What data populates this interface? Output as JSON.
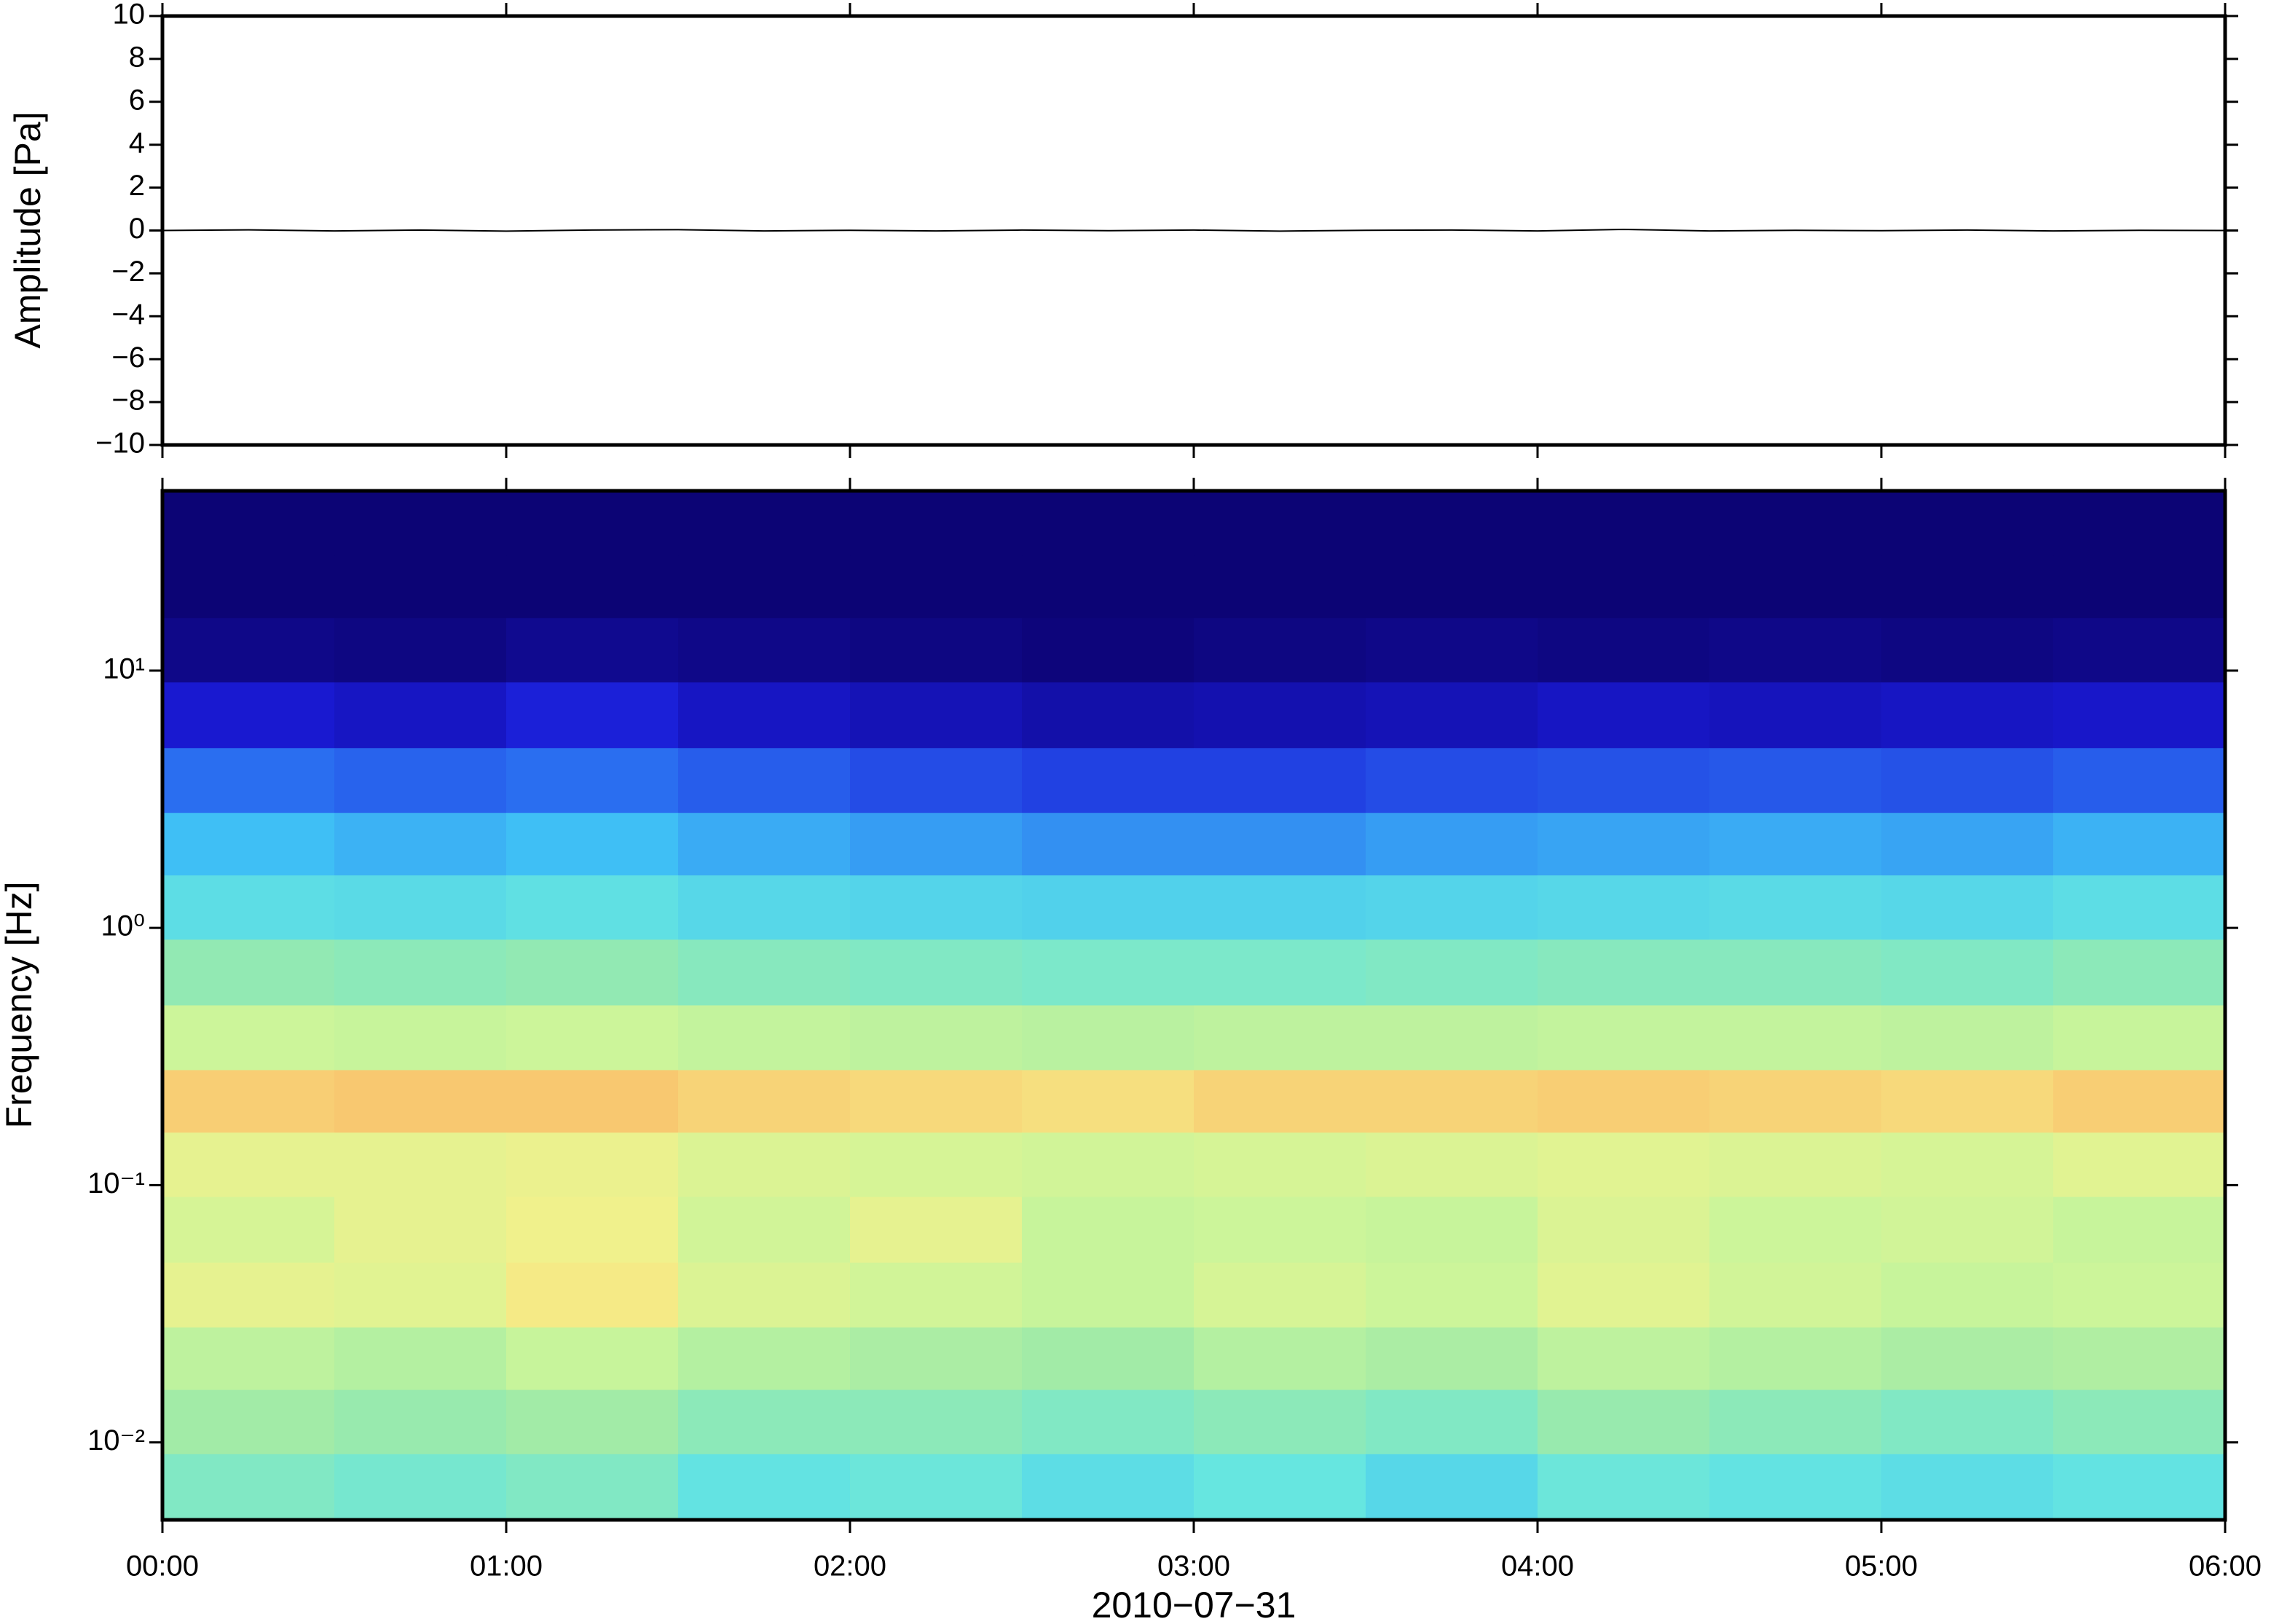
{
  "chart_data": [
    {
      "type": "line",
      "ylabel": "Amplitude [Pa]",
      "xlim": [
        0,
        6
      ],
      "xticks": [
        0,
        1,
        2,
        3,
        4,
        5,
        6
      ],
      "ylim": [
        -10,
        10
      ],
      "yticks": [
        {
          "value": -10,
          "label": "−10"
        },
        {
          "value": -8,
          "label": "−8"
        },
        {
          "value": -6,
          "label": "−6"
        },
        {
          "value": -4,
          "label": "−4"
        },
        {
          "value": -2,
          "label": "−2"
        },
        0,
        2,
        4,
        6,
        8,
        10
      ],
      "color": "#000000",
      "x": [
        0,
        0.25,
        0.5,
        0.75,
        1,
        1.25,
        1.5,
        1.75,
        2,
        2.25,
        2.5,
        2.75,
        3,
        3.25,
        3.5,
        3.75,
        4,
        4.25,
        4.5,
        4.75,
        5,
        5.25,
        5.5,
        5.75,
        6
      ],
      "values": [
        0,
        0.03,
        -0.02,
        0.02,
        -0.03,
        0.02,
        0.04,
        -0.02,
        0.01,
        -0.02,
        0.02,
        -0.01,
        0.02,
        -0.03,
        0.01,
        0.02,
        -0.02,
        0.05,
        -0.02,
        0.01,
        -0.01,
        0.02,
        -0.02,
        0.01,
        0
      ]
    },
    {
      "type": "heatmap",
      "ylabel": "Frequency [Hz]",
      "xlabel": "2010−07−31",
      "xlim": [
        0,
        6
      ],
      "xticks": [
        {
          "value": 0,
          "label": "00:00"
        },
        {
          "value": 1,
          "label": "01:00"
        },
        {
          "value": 2,
          "label": "02:00"
        },
        {
          "value": 3,
          "label": "03:00"
        },
        {
          "value": 4,
          "label": "04:00"
        },
        {
          "value": 5,
          "label": "05:00"
        },
        {
          "value": 6,
          "label": "06:00"
        }
      ],
      "ylim": [
        0.005,
        50
      ],
      "log_y": true,
      "yticks": [
        {
          "value": 0.01,
          "label": "10⁻²"
        },
        {
          "value": 0.1,
          "label": "10⁻¹"
        },
        {
          "value": 1,
          "label": "10⁰"
        },
        {
          "value": 10,
          "label": "10¹"
        }
      ],
      "x_bins": [
        0,
        0.5,
        1,
        1.5,
        2,
        2.5,
        3,
        3.5,
        4,
        4.5,
        5,
        5.5,
        6
      ],
      "y_bins": [
        50,
        28,
        16,
        9,
        5,
        2.8,
        1.6,
        0.9,
        0.5,
        0.28,
        0.16,
        0.09,
        0.05,
        0.028,
        0.016,
        0.009,
        0.005
      ],
      "colormap": [
        [
          0,
          "#0c0475"
        ],
        [
          0.15,
          "#1a1ad6"
        ],
        [
          0.3,
          "#2a6ef0"
        ],
        [
          0.42,
          "#3fbff5"
        ],
        [
          0.55,
          "#66e6e0"
        ],
        [
          0.65,
          "#9deaa8"
        ],
        [
          0.75,
          "#ccf59a"
        ],
        [
          0.83,
          "#f5f08a"
        ],
        [
          0.9,
          "#f8c870"
        ],
        [
          1,
          "#f4905a"
        ]
      ],
      "values": [
        [
          0,
          0,
          0,
          0,
          0,
          0,
          0,
          0,
          0,
          0,
          0,
          0
        ],
        [
          0,
          0,
          0,
          0,
          0,
          0,
          0,
          0,
          0,
          0,
          0,
          0
        ],
        [
          0.03,
          0.02,
          0.04,
          0.03,
          0.02,
          0.01,
          0.02,
          0.03,
          0.02,
          0.03,
          0.02,
          0.03
        ],
        [
          0.14,
          0.12,
          0.16,
          0.12,
          0.1,
          0.08,
          0.09,
          0.1,
          0.12,
          0.11,
          0.12,
          0.13
        ],
        [
          0.3,
          0.28,
          0.3,
          0.27,
          0.24,
          0.22,
          0.22,
          0.24,
          0.25,
          0.26,
          0.25,
          0.27
        ],
        [
          0.42,
          0.4,
          0.42,
          0.39,
          0.37,
          0.35,
          0.35,
          0.37,
          0.38,
          0.39,
          0.38,
          0.4
        ],
        [
          0.52,
          0.51,
          0.53,
          0.5,
          0.49,
          0.48,
          0.48,
          0.49,
          0.5,
          0.51,
          0.5,
          0.52
        ],
        [
          0.63,
          0.62,
          0.63,
          0.61,
          0.6,
          0.59,
          0.59,
          0.6,
          0.61,
          0.61,
          0.6,
          0.62
        ],
        [
          0.75,
          0.74,
          0.75,
          0.73,
          0.72,
          0.71,
          0.72,
          0.72,
          0.73,
          0.73,
          0.72,
          0.74
        ],
        [
          0.89,
          0.9,
          0.9,
          0.88,
          0.87,
          0.86,
          0.88,
          0.88,
          0.89,
          0.88,
          0.87,
          0.89
        ],
        [
          0.8,
          0.8,
          0.81,
          0.78,
          0.77,
          0.76,
          0.77,
          0.78,
          0.79,
          0.78,
          0.77,
          0.79
        ],
        [
          0.77,
          0.8,
          0.82,
          0.76,
          0.8,
          0.74,
          0.75,
          0.74,
          0.78,
          0.75,
          0.76,
          0.74
        ],
        [
          0.8,
          0.79,
          0.84,
          0.78,
          0.76,
          0.74,
          0.77,
          0.75,
          0.79,
          0.76,
          0.74,
          0.75
        ],
        [
          0.72,
          0.7,
          0.74,
          0.7,
          0.68,
          0.66,
          0.7,
          0.68,
          0.72,
          0.7,
          0.68,
          0.69
        ],
        [
          0.66,
          0.64,
          0.66,
          0.62,
          0.62,
          0.6,
          0.62,
          0.6,
          0.64,
          0.62,
          0.6,
          0.62
        ],
        [
          0.6,
          0.58,
          0.6,
          0.54,
          0.56,
          0.52,
          0.55,
          0.5,
          0.56,
          0.54,
          0.52,
          0.54
        ]
      ]
    }
  ]
}
